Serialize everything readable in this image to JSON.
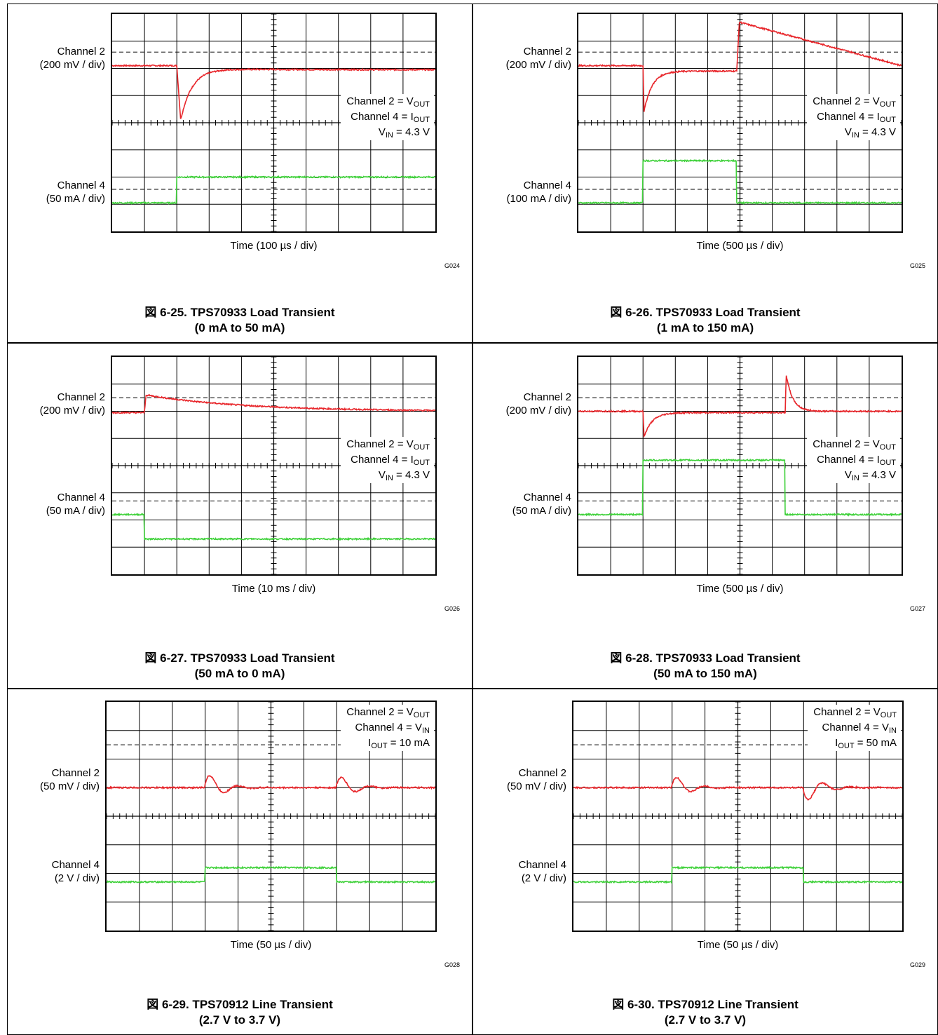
{
  "colors": {
    "channel2": "#e8262b",
    "channel4": "#3fd13a",
    "grid": "#000000"
  },
  "chart_data": [
    {
      "type": "line",
      "figure_label": "図 6-25. TPS70933 Load Transient",
      "figure_sub": "(0 mA to 50 mA)",
      "xlabel": "Time (100 µs / div)",
      "code": "G024",
      "ch2_label": "Channel 2",
      "ch2_scale": "(200 mV / div)",
      "ch4_label": "Channel 4",
      "ch4_scale": "(50 mA / div)",
      "legend": [
        {
          "pre": "Channel 2 = V",
          "sub": "OUT",
          "post": ""
        },
        {
          "pre": "Channel 4 = I",
          "sub": "OUT",
          "post": ""
        },
        {
          "pre": "V",
          "sub": "IN",
          "post": " = 4.3 V"
        }
      ],
      "x_divisions": 10,
      "y_divisions": 8,
      "series": [
        {
          "name": "Channel 2",
          "color": "#e8262b",
          "shape": "undershoot",
          "baseline_div": 6.1,
          "step_div": 2.0,
          "peak_div": 4.1,
          "settle_div": 6.0,
          "final_div": 5.95
        },
        {
          "name": "Channel 4",
          "color": "#3fd13a",
          "shape": "step",
          "baseline_div": 1.05,
          "step_div": 2.0,
          "level_div": 2.0,
          "end_div": 10
        }
      ]
    },
    {
      "type": "line",
      "figure_label": "図 6-26. TPS70933 Load Transient",
      "figure_sub": "(1 mA to 150 mA)",
      "xlabel": "Time (500 µs / div)",
      "code": "G025",
      "ch2_label": "Channel 2",
      "ch2_scale": "(200 mV / div)",
      "ch4_label": "Channel 4",
      "ch4_scale": "(100 mA / div)",
      "legend": [
        {
          "pre": "Channel 2 = V",
          "sub": "OUT",
          "post": ""
        },
        {
          "pre": "Channel 4 = I",
          "sub": "OUT",
          "post": ""
        },
        {
          "pre": "V",
          "sub": "IN",
          "post": " = 4.3 V"
        }
      ],
      "x_divisions": 10,
      "y_divisions": 8,
      "series": [
        {
          "name": "Channel 2",
          "color": "#e8262b",
          "shape": "pulse",
          "baseline_div": 6.1,
          "step_div": 2.0,
          "peak_div": 4.4,
          "settle_div": 5.9,
          "release_div": 4.9,
          "overshoot_div": 7.7,
          "final_div": 6.1
        },
        {
          "name": "Channel 4",
          "color": "#3fd13a",
          "shape": "pulse-step",
          "baseline_div": 1.05,
          "step_div": 2.0,
          "level_div": 2.6,
          "release_div": 4.9
        }
      ]
    },
    {
      "type": "line",
      "figure_label": "図 6-27. TPS70933 Load Transient",
      "figure_sub": "(50 mA to 0 mA)",
      "xlabel": "Time (10 ms / div)",
      "code": "G026",
      "ch2_label": "Channel 2",
      "ch2_scale": "(200 mV / div)",
      "ch4_label": "Channel 4",
      "ch4_scale": "(50 mA / div)",
      "legend": [
        {
          "pre": "Channel 2 = V",
          "sub": "OUT",
          "post": ""
        },
        {
          "pre": "Channel 4 = I",
          "sub": "OUT",
          "post": ""
        },
        {
          "pre": "V",
          "sub": "IN",
          "post": " = 4.3 V"
        }
      ],
      "x_divisions": 10,
      "y_divisions": 8,
      "series": [
        {
          "name": "Channel 2",
          "color": "#e8262b",
          "shape": "overshoot-decay",
          "baseline_div": 6.0,
          "step_div": 1.0,
          "peak_div": 6.6,
          "final_div": 6.0
        },
        {
          "name": "Channel 4",
          "color": "#3fd13a",
          "shape": "step-down",
          "baseline_div": 2.2,
          "step_div": 1.0,
          "level_div": 1.3
        }
      ]
    },
    {
      "type": "line",
      "figure_label": "図 6-28. TPS70933 Load Transient",
      "figure_sub": "(50 mA to 150 mA)",
      "xlabel": "Time (500 µs / div)",
      "code": "G027",
      "ch2_label": "Channel 2",
      "ch2_scale": "(200 mV / div)",
      "ch4_label": "Channel 4",
      "ch4_scale": "(50 mA / div)",
      "legend": [
        {
          "pre": "Channel 2 = V",
          "sub": "OUT",
          "post": ""
        },
        {
          "pre": "Channel 4 = I",
          "sub": "OUT",
          "post": ""
        },
        {
          "pre": "V",
          "sub": "IN",
          "post": " = 4.3 V"
        }
      ],
      "x_divisions": 10,
      "y_divisions": 8,
      "series": [
        {
          "name": "Channel 2",
          "color": "#e8262b",
          "shape": "pulse-spike",
          "baseline_div": 6.0,
          "step_div": 2.0,
          "peak_div": 5.05,
          "settle_div": 5.95,
          "release_div": 6.4,
          "overshoot_div": 7.35,
          "final_div": 6.0
        },
        {
          "name": "Channel 4",
          "color": "#3fd13a",
          "shape": "pulse-step",
          "baseline_div": 2.2,
          "step_div": 2.0,
          "level_div": 4.2,
          "release_div": 6.4
        }
      ]
    },
    {
      "type": "line",
      "figure_label": "図 6-29. TPS70912 Line Transient",
      "figure_sub": "(2.7 V to 3.7 V)",
      "xlabel": "Time (50 µs / div)",
      "code": "G028",
      "ch2_label": "Channel 2",
      "ch2_scale": "(50 mV / div)",
      "ch4_label": "Channel 4",
      "ch4_scale": "(2 V / div)",
      "legend": [
        {
          "pre": "Channel 2 = V",
          "sub": "OUT",
          "post": ""
        },
        {
          "pre": "Channel 4 = V",
          "sub": "IN",
          "post": ""
        },
        {
          "pre": "I",
          "sub": "OUT",
          "post": " = 10 mA"
        }
      ],
      "x_divisions": 10,
      "y_divisions": 8,
      "series": [
        {
          "name": "Channel 2",
          "color": "#e8262b",
          "shape": "ring",
          "baseline_div": 5.0,
          "step_div": 3.0,
          "release_div": 7.0,
          "amp1_div": 0.6,
          "amp2_div": 0.5
        },
        {
          "name": "Channel 4",
          "color": "#3fd13a",
          "shape": "pulse-step",
          "baseline_div": 1.7,
          "step_div": 3.0,
          "level_div": 2.2,
          "release_div": 7.0
        }
      ]
    },
    {
      "type": "line",
      "figure_label": "図 6-30. TPS70912 Line Transient",
      "figure_sub": "(2.7 V to 3.7 V)",
      "xlabel": "Time (50 µs / div)",
      "code": "G029",
      "ch2_label": "Channel 2",
      "ch2_scale": "(50 mV / div)",
      "ch4_label": "Channel 4",
      "ch4_scale": "(2 V / div)",
      "legend": [
        {
          "pre": "Channel 2 = V",
          "sub": "OUT",
          "post": ""
        },
        {
          "pre": "Channel 4 = V",
          "sub": "IN",
          "post": ""
        },
        {
          "pre": "I",
          "sub": "OUT",
          "post": " = 50 mA"
        }
      ],
      "x_divisions": 10,
      "y_divisions": 8,
      "series": [
        {
          "name": "Channel 2",
          "color": "#e8262b",
          "shape": "ring",
          "baseline_div": 5.0,
          "step_div": 3.0,
          "release_div": 7.0,
          "amp1_div": 0.5,
          "amp2_div": -0.6
        },
        {
          "name": "Channel 4",
          "color": "#3fd13a",
          "shape": "pulse-step",
          "baseline_div": 1.7,
          "step_div": 3.0,
          "level_div": 2.2,
          "release_div": 7.0
        }
      ]
    }
  ]
}
